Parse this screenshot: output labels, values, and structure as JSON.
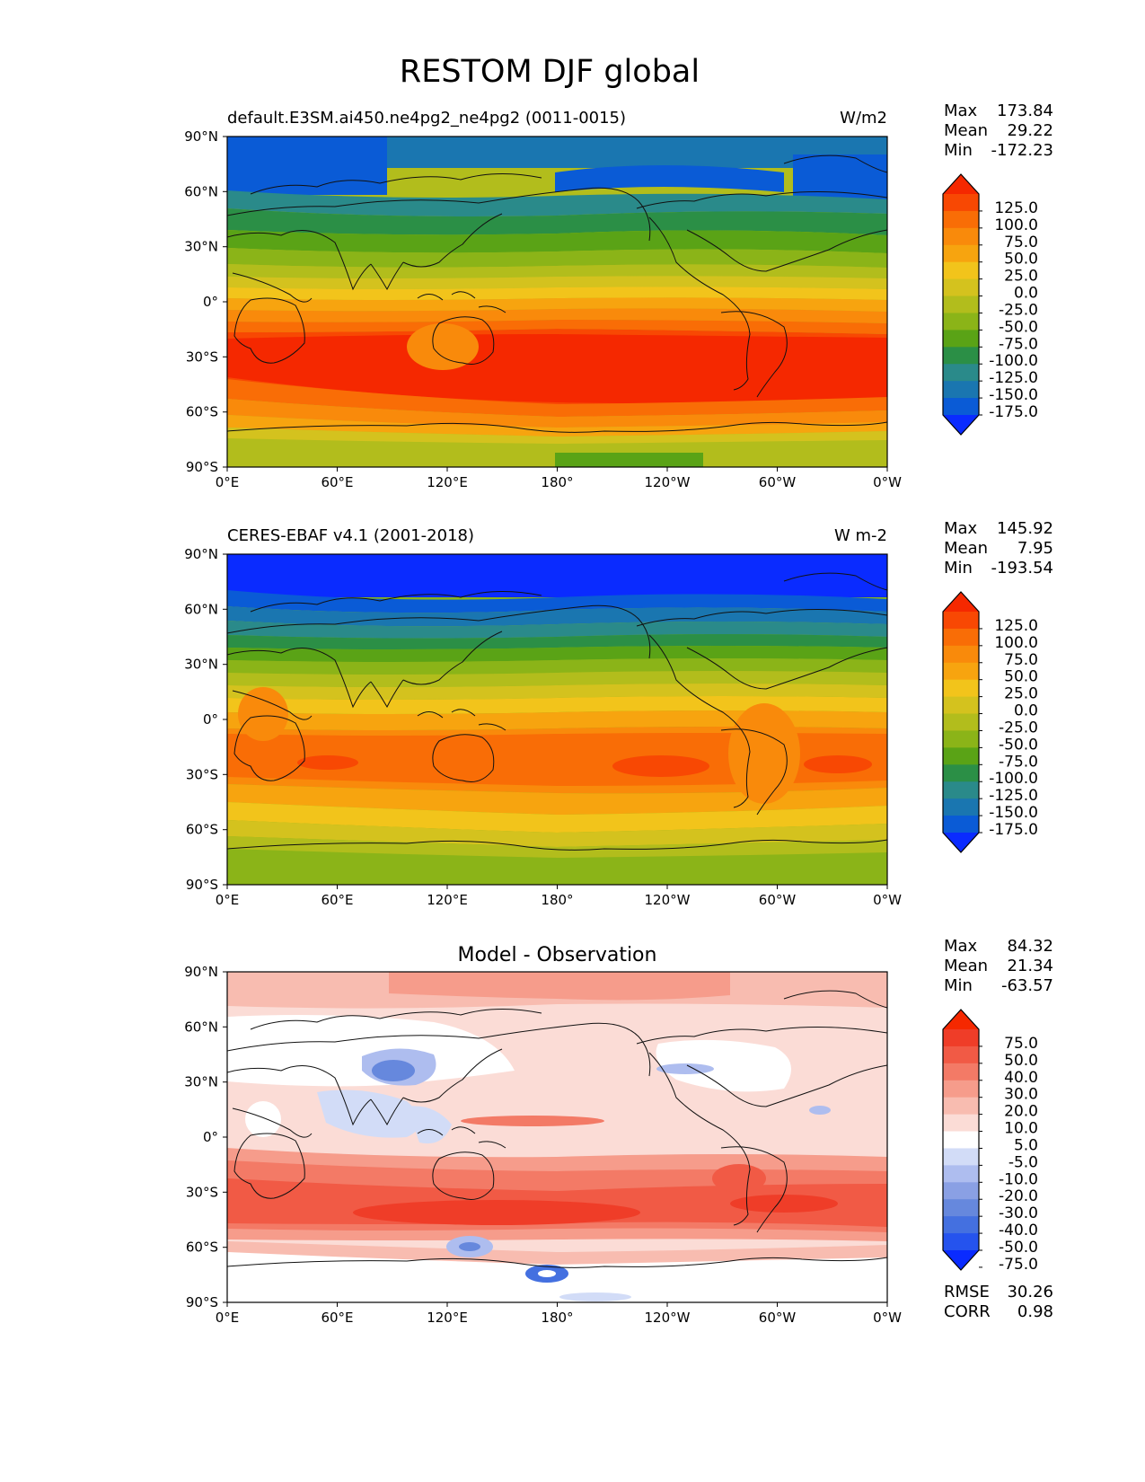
{
  "title": "RESTOM DJF global",
  "colors": {
    "abs": [
      "#0a2bff",
      "#0a5bd6",
      "#1a76b0",
      "#2a8a8a",
      "#2b8f46",
      "#5aa316",
      "#8bb418",
      "#b2bd1c",
      "#d4c21e",
      "#f2c41b",
      "#f7a40f",
      "#f98a0b",
      "#f96d06",
      "#f84803",
      "#f52800"
    ],
    "diff": [
      "#0a2bff",
      "#2553ee",
      "#4470e0",
      "#6688dd",
      "#8aa0e4",
      "#aebdef",
      "#d2dcf7",
      "#ffffff",
      "#fbdcd6",
      "#f8bcb0",
      "#f69c8b",
      "#f37a66",
      "#f15a45",
      "#ef3d28",
      "#f52800"
    ]
  },
  "panels": [
    {
      "left_title": "default.E3SM.ai450.ne4pg2_ne4pg2 (0011-0015)",
      "center_title": "",
      "units": "W/m2",
      "stats": [
        {
          "label": "Max",
          "value": "173.84"
        },
        {
          "label": "Mean",
          "value": "29.22"
        },
        {
          "label": "Min",
          "value": "-172.23"
        }
      ],
      "cbar_labels": [
        "125.0",
        "100.0",
        "75.0",
        "50.0",
        "25.0",
        "0.0",
        "-25.0",
        "-50.0",
        "-75.0",
        "-100.0",
        "-125.0",
        "-150.0",
        "-175.0"
      ],
      "footer": []
    },
    {
      "left_title": "CERES-EBAF v4.1 (2001-2018)",
      "center_title": "",
      "units": "W m-2",
      "stats": [
        {
          "label": "Max",
          "value": "145.92"
        },
        {
          "label": "Mean",
          "value": "7.95"
        },
        {
          "label": "Min",
          "value": "-193.54"
        }
      ],
      "cbar_labels": [
        "125.0",
        "100.0",
        "75.0",
        "50.0",
        "25.0",
        "0.0",
        "-25.0",
        "-50.0",
        "-75.0",
        "-100.0",
        "-125.0",
        "-150.0",
        "-175.0"
      ],
      "footer": []
    },
    {
      "left_title": "",
      "center_title": "Model - Observation",
      "units": "",
      "stats": [
        {
          "label": "Max",
          "value": "84.32"
        },
        {
          "label": "Mean",
          "value": "21.34"
        },
        {
          "label": "Min",
          "value": "-63.57"
        }
      ],
      "cbar_labels": [
        "75.0",
        "50.0",
        "40.0",
        "30.0",
        "20.0",
        "10.0",
        "5.0",
        "-5.0",
        "-10.0",
        "-20.0",
        "-30.0",
        "-40.0",
        "-50.0",
        "-75.0"
      ],
      "footer": [
        {
          "label": "RMSE",
          "value": "30.26"
        },
        {
          "label": "CORR",
          "value": "0.98"
        }
      ]
    }
  ],
  "axes": {
    "lat_labels": [
      "90°N",
      "60°N",
      "30°N",
      "0°",
      "30°S",
      "60°S",
      "90°S"
    ],
    "lon_labels": [
      "0°E",
      "60°E",
      "120°E",
      "180°",
      "120°W",
      "60°W",
      "0°W"
    ]
  }
}
